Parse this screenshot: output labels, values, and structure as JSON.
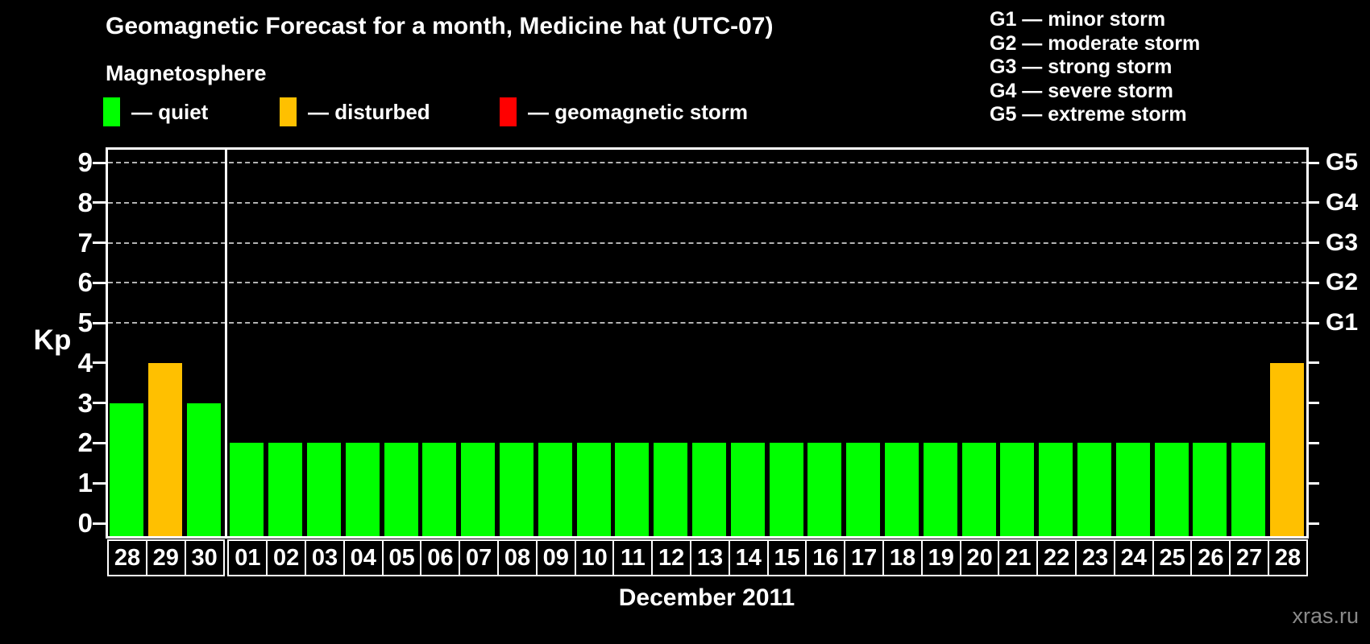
{
  "title": "Geomagnetic Forecast for a month, Medicine hat (UTC-07)",
  "subtitle": "Magnetosphere",
  "legend": {
    "items": [
      {
        "key": "quiet",
        "label": "— quiet",
        "color": "#00ff00"
      },
      {
        "key": "disturbed",
        "label": "— disturbed",
        "color": "#ffc000"
      },
      {
        "key": "storm",
        "label": "— geomagnetic storm",
        "color": "#ff0000"
      }
    ]
  },
  "g_legend": [
    "G1 — minor storm",
    "G2 — moderate storm",
    "G3 — strong storm",
    "G4 — severe storm",
    "G5 — extreme storm"
  ],
  "watermark": "xras.ru",
  "chart_data": {
    "type": "bar",
    "title": "Geomagnetic Forecast for a month, Medicine hat (UTC-07)",
    "xlabel": "December 2011",
    "ylabel": "Kp",
    "ylim": [
      0,
      9
    ],
    "yticks": [
      0,
      1,
      2,
      3,
      4,
      5,
      6,
      7,
      8,
      9
    ],
    "gridlines_at": [
      5,
      6,
      7,
      8,
      9
    ],
    "grid": "dashed, G-storm levels only",
    "legend_position": "top",
    "right_axis_labels": [
      {
        "label": "G1",
        "kp": 5
      },
      {
        "label": "G2",
        "kp": 6
      },
      {
        "label": "G3",
        "kp": 7
      },
      {
        "label": "G4",
        "kp": 8
      },
      {
        "label": "G5",
        "kp": 9
      }
    ],
    "categories": [
      "28",
      "29",
      "30",
      "01",
      "02",
      "03",
      "04",
      "05",
      "06",
      "07",
      "08",
      "09",
      "10",
      "11",
      "12",
      "13",
      "14",
      "15",
      "16",
      "17",
      "18",
      "19",
      "20",
      "21",
      "22",
      "23",
      "24",
      "25",
      "26",
      "27",
      "28"
    ],
    "values": [
      3,
      4,
      3,
      2,
      2,
      2,
      2,
      2,
      2,
      2,
      2,
      2,
      2,
      2,
      2,
      2,
      2,
      2,
      2,
      2,
      2,
      2,
      2,
      2,
      2,
      2,
      2,
      2,
      2,
      2,
      4
    ],
    "states": [
      "quiet",
      "disturbed",
      "quiet",
      "quiet",
      "quiet",
      "quiet",
      "quiet",
      "quiet",
      "quiet",
      "quiet",
      "quiet",
      "quiet",
      "quiet",
      "quiet",
      "quiet",
      "quiet",
      "quiet",
      "quiet",
      "quiet",
      "quiet",
      "quiet",
      "quiet",
      "quiet",
      "quiet",
      "quiet",
      "quiet",
      "quiet",
      "quiet",
      "quiet",
      "quiet",
      "disturbed"
    ],
    "state_colors": {
      "quiet": "#00ff00",
      "disturbed": "#ffc000",
      "storm": "#ff0000"
    },
    "month_separator_after_index": 2
  }
}
